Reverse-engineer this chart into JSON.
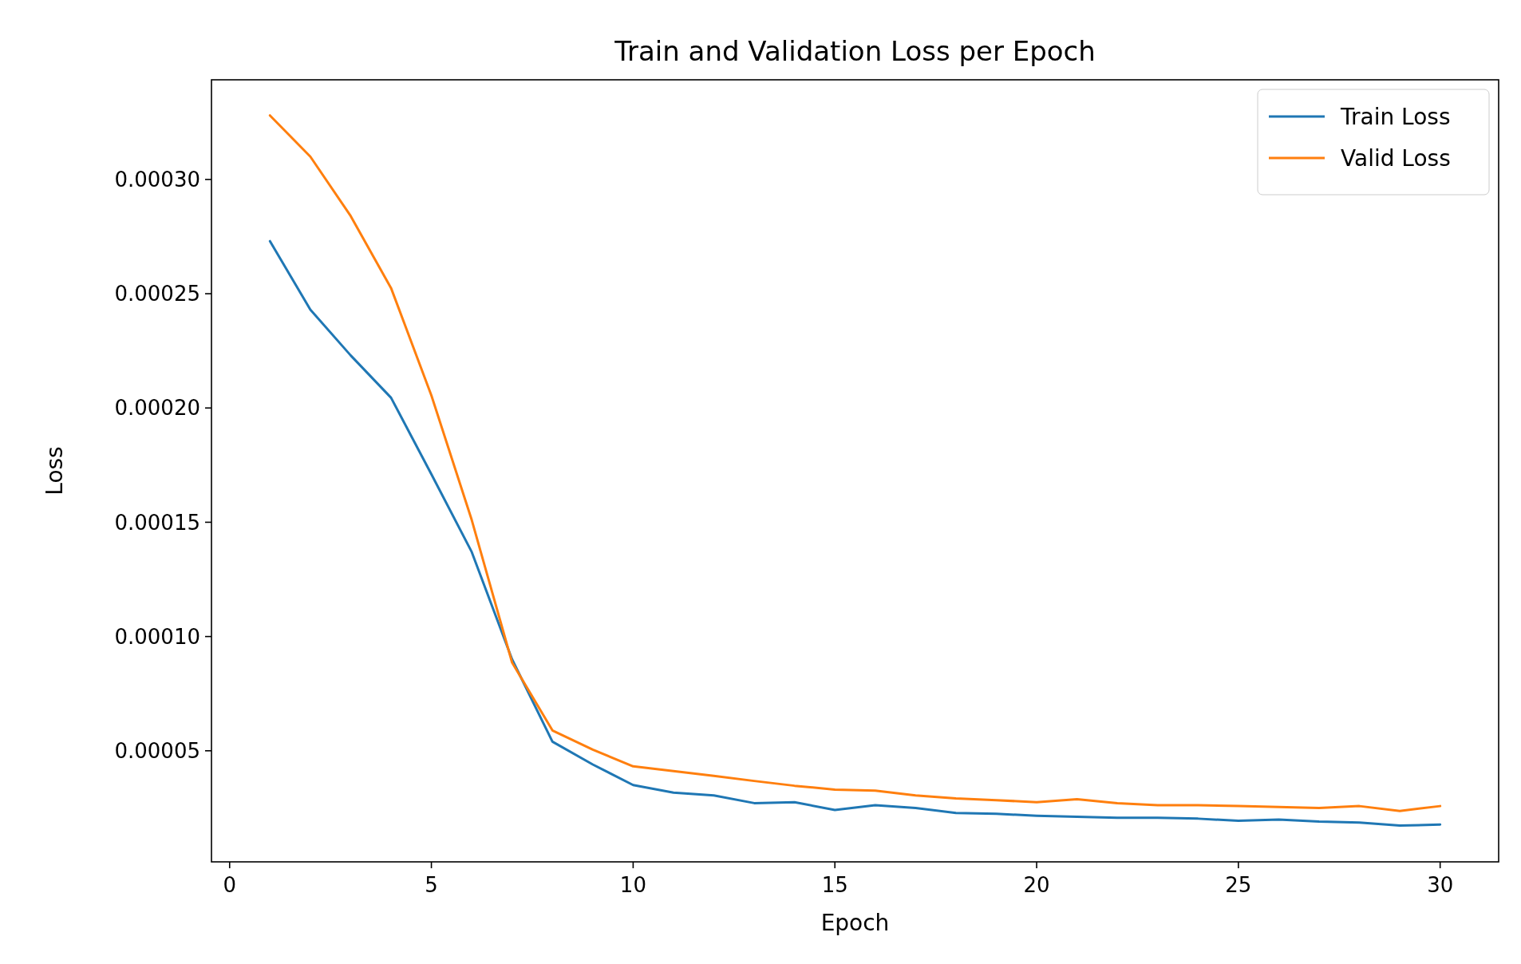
{
  "chart_data": {
    "type": "line",
    "title": "Train and Validation Loss per Epoch",
    "xlabel": "Epoch",
    "ylabel": "Loss",
    "x": [
      1,
      2,
      3,
      4,
      5,
      6,
      7,
      8,
      9,
      10,
      11,
      12,
      13,
      14,
      15,
      16,
      17,
      18,
      19,
      20,
      21,
      22,
      23,
      24,
      25,
      26,
      27,
      28,
      29,
      30
    ],
    "series": [
      {
        "name": "Train Loss",
        "color": "#1f77b4",
        "values": [
          0.000273,
          0.000243,
          0.000223,
          0.0002045,
          0.000171,
          0.000137,
          9e-05,
          5.4e-05,
          4.4e-05,
          3.5e-05,
          3.17e-05,
          3.05e-05,
          2.71e-05,
          2.75e-05,
          2.41e-05,
          2.62e-05,
          2.5e-05,
          2.28e-05,
          2.24e-05,
          2.16e-05,
          2.11e-05,
          2.07e-05,
          2.07e-05,
          2.03e-05,
          1.94e-05,
          1.99e-05,
          1.9e-05,
          1.86e-05,
          1.73e-05,
          1.77e-05
        ]
      },
      {
        "name": "Valid Loss",
        "color": "#ff7f0e",
        "values": [
          0.000328,
          0.00031,
          0.000284,
          0.0002525,
          0.0002055,
          0.000151,
          8.86e-05,
          5.89e-05,
          5.05e-05,
          4.32e-05,
          4.11e-05,
          3.9e-05,
          3.68e-05,
          3.47e-05,
          3.3e-05,
          3.26e-05,
          3.05e-05,
          2.92e-05,
          2.84e-05,
          2.75e-05,
          2.88e-05,
          2.71e-05,
          2.62e-05,
          2.62e-05,
          2.58e-05,
          2.54e-05,
          2.5e-05,
          2.58e-05,
          2.37e-05,
          2.58e-05
        ]
      }
    ],
    "xlim": [
      -0.45,
      31.45
    ],
    "xticks": [
      0,
      5,
      10,
      15,
      20,
      25,
      30
    ],
    "ylim": [
      1.4e-06,
      0.0003436
    ],
    "yticks": [
      {
        "value": 5e-05,
        "label": "0.00005"
      },
      {
        "value": 0.0001,
        "label": "0.00010"
      },
      {
        "value": 0.00015,
        "label": "0.00015"
      },
      {
        "value": 0.0002,
        "label": "0.00020"
      },
      {
        "value": 0.00025,
        "label": "0.00025"
      },
      {
        "value": 0.0003,
        "label": "0.00030"
      }
    ],
    "legend": "top right",
    "grid": false,
    "line_style": "solid",
    "marker": "none"
  }
}
